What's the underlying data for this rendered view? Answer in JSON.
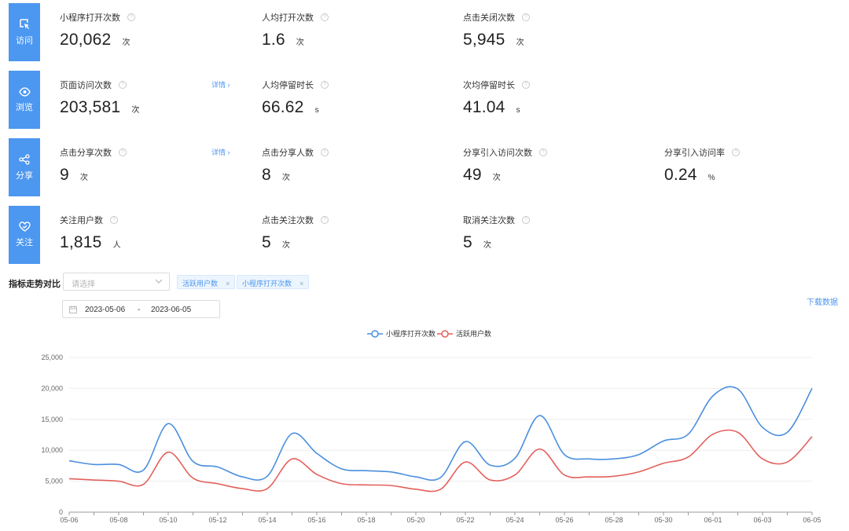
{
  "categories_rows": [
    {
      "label": "访问",
      "icon": "cursor-click-icon",
      "metrics": [
        {
          "label": "小程序打开次数",
          "value": "20,062",
          "unit": "次"
        },
        {
          "label": "人均打开次数",
          "value": "1.6",
          "unit": "次"
        },
        {
          "label": "点击关闭次数",
          "value": "5,945",
          "unit": "次"
        }
      ]
    },
    {
      "label": "浏览",
      "icon": "eye-icon",
      "detail": "详情",
      "metrics": [
        {
          "label": "页面访问次数",
          "value": "203,581",
          "unit": "次"
        },
        {
          "label": "人均停留时长",
          "value": "66.62",
          "unit": "s"
        },
        {
          "label": "次均停留时长",
          "value": "41.04",
          "unit": "s"
        }
      ]
    },
    {
      "label": "分享",
      "icon": "share-icon",
      "detail": "详情",
      "metrics": [
        {
          "label": "点击分享次数",
          "value": "9",
          "unit": "次"
        },
        {
          "label": "点击分享人数",
          "value": "8",
          "unit": "次"
        },
        {
          "label": "分享引入访问次数",
          "value": "49",
          "unit": "次"
        },
        {
          "label": "分享引入访问率",
          "value": "0.24",
          "unit": "%"
        }
      ]
    },
    {
      "label": "关注",
      "icon": "heart-icon",
      "metrics": [
        {
          "label": "关注用户数",
          "value": "1,815",
          "unit": "人"
        },
        {
          "label": "点击关注次数",
          "value": "5",
          "unit": "次"
        },
        {
          "label": "取消关注次数",
          "value": "5",
          "unit": "次"
        }
      ]
    }
  ],
  "trend": {
    "title": "指标走势对比",
    "select_placeholder": "请选择",
    "tags": [
      "活跃用户数",
      "小程序打开次数"
    ],
    "date_start": "2023-05-06",
    "date_sep": "-",
    "date_end": "2023-06-05",
    "download_label": "下载数据"
  },
  "colors": {
    "accent": "#4c97f0",
    "series_blue": "#4a8fde",
    "series_red": "#e3605c"
  },
  "chart_data": {
    "type": "line",
    "x": [
      "05-06",
      "05-07",
      "05-08",
      "05-09",
      "05-10",
      "05-11",
      "05-12",
      "05-13",
      "05-14",
      "05-15",
      "05-16",
      "05-17",
      "05-18",
      "05-19",
      "05-20",
      "05-21",
      "05-22",
      "05-23",
      "05-24",
      "05-25",
      "05-26",
      "05-27",
      "05-28",
      "05-29",
      "05-30",
      "05-31",
      "06-01",
      "06-02",
      "06-03",
      "06-04",
      "06-05"
    ],
    "x_tick_labels": [
      "05-06",
      "05-08",
      "05-10",
      "05-12",
      "05-14",
      "05-16",
      "05-18",
      "05-20",
      "05-22",
      "05-24",
      "05-26",
      "05-28",
      "05-30",
      "06-01",
      "06-03",
      "06-05"
    ],
    "series": [
      {
        "name": "小程序打开次数",
        "color": "#4a8fde",
        "values": [
          8300,
          7700,
          7700,
          6800,
          14300,
          8200,
          7300,
          5700,
          5800,
          12700,
          9500,
          7000,
          6700,
          6500,
          5700,
          5600,
          11400,
          7600,
          8700,
          15600,
          9300,
          8600,
          8600,
          9300,
          11500,
          12600,
          18800,
          19900,
          13700,
          12900,
          20000
        ]
      },
      {
        "name": "活跃用户数",
        "color": "#e3605c",
        "values": [
          5400,
          5200,
          5000,
          4500,
          9700,
          5500,
          4600,
          3800,
          3800,
          8600,
          6100,
          4600,
          4400,
          4300,
          3700,
          3700,
          8100,
          5200,
          6000,
          10200,
          6000,
          5700,
          5800,
          6500,
          7900,
          8900,
          12600,
          12900,
          8600,
          8100,
          12200
        ]
      }
    ],
    "ylim": [
      0,
      25000
    ],
    "yticks": [
      "0",
      "5,000",
      "10,000",
      "15,000",
      "20,000",
      "25,000"
    ],
    "legend": "top-center",
    "grid": true
  }
}
